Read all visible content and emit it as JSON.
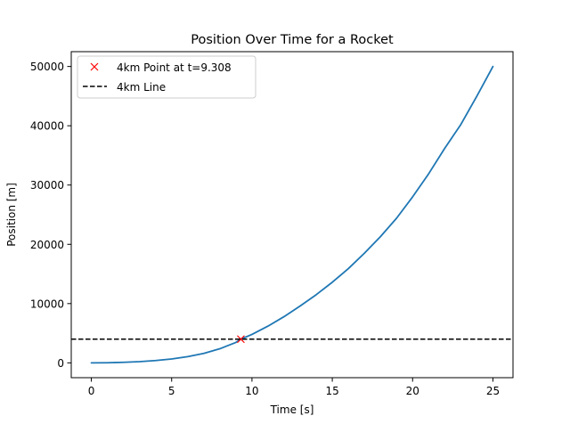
{
  "chart_data": {
    "type": "line",
    "title": "Position Over Time for a Rocket",
    "xlabel": "Time [s]",
    "ylabel": "Position [m]",
    "xlim": [
      -1.25,
      26.25
    ],
    "ylim": [
      -2500,
      52500
    ],
    "xticks": [
      0,
      5,
      10,
      15,
      20,
      25
    ],
    "yticks": [
      0,
      10000,
      20000,
      30000,
      40000,
      50000
    ],
    "grid": false,
    "legend_position": "upper-left",
    "series": [
      {
        "name": "",
        "color": "#1f77b4",
        "style": "solid",
        "x": [
          0,
          1,
          2,
          3,
          4,
          5,
          6,
          7,
          8,
          9,
          9.308,
          10,
          11,
          12,
          13,
          14,
          15,
          16,
          17,
          18,
          19,
          20,
          21,
          22,
          23,
          24,
          25
        ],
        "y": [
          0,
          20,
          90,
          200,
          390,
          660,
          1050,
          1600,
          2380,
          3450,
          4000,
          4800,
          6200,
          7800,
          9600,
          11500,
          13600,
          15900,
          18500,
          21300,
          24400,
          28000,
          31900,
          36200,
          40200,
          45000,
          50000
        ]
      },
      {
        "name": "4km Point at t=9.308",
        "type": "point",
        "marker": "x",
        "color": "#ff0000",
        "x": [
          9.308
        ],
        "y": [
          4000
        ]
      },
      {
        "name": "4km Line",
        "type": "hline",
        "color": "#000000",
        "style": "dashed",
        "y": 4000
      }
    ]
  }
}
